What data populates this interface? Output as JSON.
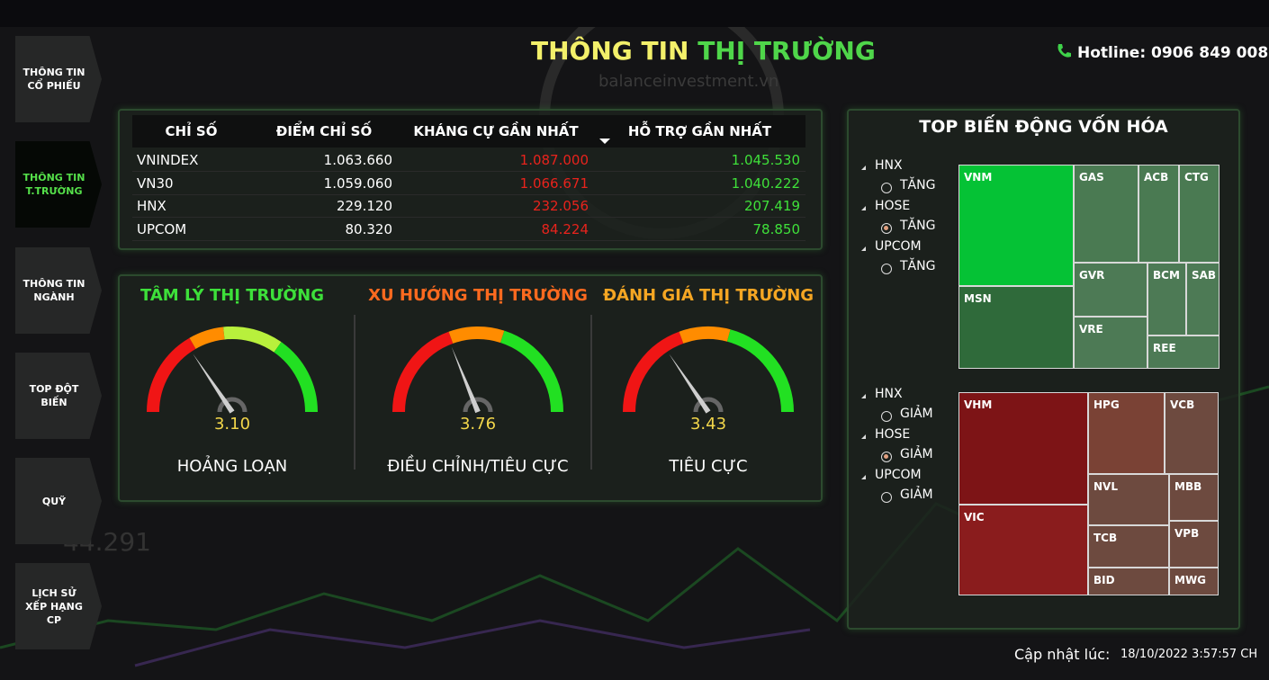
{
  "nav": [
    {
      "label": "THÔNG TIN CỔ PHIẾU",
      "active": false
    },
    {
      "label": "THÔNG TIN T.TRƯỜNG",
      "active": true
    },
    {
      "label": "THÔNG TIN NGÀNH",
      "active": false
    },
    {
      "label": "TOP ĐỘT BIẾN",
      "active": false
    },
    {
      "label": "QUỸ",
      "active": false
    },
    {
      "label": "LỊCH SỬ XẾP HẠNG CP",
      "active": false
    }
  ],
  "header": {
    "title_part1": "THÔNG TIN",
    "title_part2": "THỊ TRƯỜNG",
    "hotline": "Hotline: 0906 849 008",
    "watermark": "balanceinvestment.vn"
  },
  "table": {
    "columns": [
      "CHỈ SỐ",
      "ĐIỂM CHỈ SỐ",
      "KHÁNG CỰ GẦN NHẤT",
      "HỖ TRỢ GẦN NHẤT"
    ],
    "rows": [
      [
        "VNINDEX",
        "1.063.660",
        "1.087.000",
        "1.045.530"
      ],
      [
        "VN30",
        "1.059.060",
        "1.066.671",
        "1.040.222"
      ],
      [
        "HNX",
        "229.120",
        "232.056",
        "207.419"
      ],
      [
        "UPCOM",
        "80.320",
        "84.224",
        "78.850"
      ]
    ]
  },
  "gauges": [
    {
      "title": "TÂM LÝ THỊ TRƯỜNG",
      "value": "3.10",
      "status": "HOẢNG LOẠN"
    },
    {
      "title": "XU HƯỚNG THỊ TRƯỜNG",
      "value": "3.76",
      "status": "ĐIỀU CHỈNH/TIÊU CỰC"
    },
    {
      "title": "ĐÁNH GIÁ THỊ TRƯỜNG",
      "value": "3.43",
      "status": "TIÊU CỰC"
    }
  ],
  "top_movers": {
    "title": "TOP BIẾN ĐỘNG VỐN HÓA",
    "sections": [
      {
        "filters": [
          {
            "exchange": "HNX",
            "option": "TĂNG",
            "selected": false
          },
          {
            "exchange": "HOSE",
            "option": "TĂNG",
            "selected": true
          },
          {
            "exchange": "UPCOM",
            "option": "TĂNG",
            "selected": false
          }
        ],
        "tiles": [
          "VNM",
          "MSN",
          "GAS",
          "ACB",
          "CTG",
          "GVR",
          "VRE",
          "BCM",
          "SAB",
          "REE"
        ]
      },
      {
        "filters": [
          {
            "exchange": "HNX",
            "option": "GIẢM",
            "selected": false
          },
          {
            "exchange": "HOSE",
            "option": "GIẢM",
            "selected": true
          },
          {
            "exchange": "UPCOM",
            "option": "GIẢM",
            "selected": false
          }
        ],
        "tiles": [
          "VHM",
          "VIC",
          "HPG",
          "VCB",
          "NVL",
          "MBB",
          "TCB",
          "VPB",
          "BID",
          "MWG"
        ]
      }
    ]
  },
  "footer": {
    "label": "Cập nhật lúc:",
    "timestamp": "18/10/2022 3:57:57 CH"
  }
}
